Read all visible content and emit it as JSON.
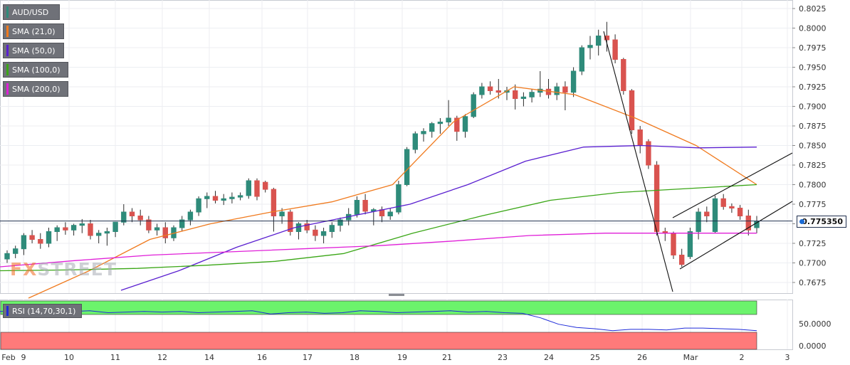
{
  "chart_data": [
    {
      "type": "candlestick",
      "title": "AUD/USD",
      "legend": [
        {
          "label": "AUD/USD",
          "color": "#2e8b7a"
        },
        {
          "label": "SMA (21,0)",
          "color": "#f07a1e"
        },
        {
          "label": "SMA (50,0)",
          "color": "#5a1fd0"
        },
        {
          "label": "SMA (100,0)",
          "color": "#3aa616"
        },
        {
          "label": "SMA (200,0)",
          "color": "#e01fd8"
        }
      ],
      "y_ticks": [
        "0.8025",
        "0.8000",
        "0.7975",
        "0.7950",
        "0.7925",
        "0.7900",
        "0.7875",
        "0.7850",
        "0.7825",
        "0.7800",
        "0.7775",
        "0.7750",
        "0.7725",
        "0.7700",
        "0.7675"
      ],
      "ylim": [
        0.7662,
        0.8035
      ],
      "x_ticks": [
        "Feb",
        "9",
        "10",
        "11",
        "12",
        "14",
        "16",
        "17",
        "18",
        "19",
        "21",
        "23",
        "24",
        "25",
        "26",
        "Mar",
        "2",
        "3"
      ],
      "current_price": "0.775350",
      "candles": [
        [
          0.7705,
          0.7716,
          0.77,
          0.7712
        ],
        [
          0.7712,
          0.7722,
          0.7706,
          0.7718
        ],
        [
          0.7718,
          0.7738,
          0.771,
          0.7735
        ],
        [
          0.7735,
          0.7742,
          0.7725,
          0.773
        ],
        [
          0.773,
          0.7738,
          0.7718,
          0.7725
        ],
        [
          0.7725,
          0.7745,
          0.772,
          0.774
        ],
        [
          0.774,
          0.7748,
          0.7728,
          0.7745
        ],
        [
          0.7745,
          0.7752,
          0.7736,
          0.7742
        ],
        [
          0.7742,
          0.775,
          0.7735,
          0.7748
        ],
        [
          0.7748,
          0.7756,
          0.7738,
          0.775
        ],
        [
          0.775,
          0.7755,
          0.773,
          0.7735
        ],
        [
          0.7735,
          0.7742,
          0.7725,
          0.7738
        ],
        [
          0.7738,
          0.7745,
          0.7722,
          0.774
        ],
        [
          0.774,
          0.775,
          0.7733,
          0.7752
        ],
        [
          0.7752,
          0.7775,
          0.7748,
          0.7765
        ],
        [
          0.7765,
          0.777,
          0.7752,
          0.776
        ],
        [
          0.776,
          0.7768,
          0.7748,
          0.7755
        ],
        [
          0.7755,
          0.776,
          0.7738,
          0.7742
        ],
        [
          0.7742,
          0.775,
          0.7735,
          0.7745
        ],
        [
          0.7745,
          0.7752,
          0.7725,
          0.7732
        ],
        [
          0.7732,
          0.7748,
          0.7728,
          0.7745
        ],
        [
          0.7745,
          0.776,
          0.774,
          0.7755
        ],
        [
          0.7755,
          0.7768,
          0.7748,
          0.7765
        ],
        [
          0.7765,
          0.7785,
          0.776,
          0.7782
        ],
        [
          0.7782,
          0.779,
          0.777,
          0.7785
        ],
        [
          0.7785,
          0.7792,
          0.7776,
          0.778
        ],
        [
          0.778,
          0.7788,
          0.7774,
          0.7782
        ],
        [
          0.7782,
          0.779,
          0.7776,
          0.7784
        ],
        [
          0.7784,
          0.779,
          0.778,
          0.7786
        ],
        [
          0.7786,
          0.7808,
          0.7782,
          0.7805
        ],
        [
          0.7805,
          0.7808,
          0.778,
          0.7785
        ],
        [
          0.7803,
          0.7805,
          0.779,
          0.7794
        ],
        [
          0.7794,
          0.7796,
          0.774,
          0.776
        ],
        [
          0.776,
          0.777,
          0.775,
          0.7765
        ],
        [
          0.7765,
          0.7768,
          0.7735,
          0.774
        ],
        [
          0.774,
          0.7752,
          0.773,
          0.775
        ],
        [
          0.775,
          0.7755,
          0.7738,
          0.7742
        ],
        [
          0.7742,
          0.7748,
          0.7728,
          0.7735
        ],
        [
          0.7735,
          0.7745,
          0.7725,
          0.774
        ],
        [
          0.774,
          0.7752,
          0.7732,
          0.7748
        ],
        [
          0.7748,
          0.7758,
          0.774,
          0.7755
        ],
        [
          0.7755,
          0.777,
          0.7748,
          0.7762
        ],
        [
          0.7762,
          0.7785,
          0.7758,
          0.778
        ],
        [
          0.778,
          0.7788,
          0.7762,
          0.7766
        ],
        [
          0.7766,
          0.777,
          0.7748,
          0.7768
        ],
        [
          0.7768,
          0.7772,
          0.7752,
          0.776
        ],
        [
          0.776,
          0.777,
          0.7755,
          0.7765
        ],
        [
          0.7765,
          0.7805,
          0.7762,
          0.78
        ],
        [
          0.78,
          0.7848,
          0.7798,
          0.7845
        ],
        [
          0.7845,
          0.7868,
          0.784,
          0.7865
        ],
        [
          0.7865,
          0.7872,
          0.7855,
          0.7868
        ],
        [
          0.7868,
          0.788,
          0.786,
          0.7878
        ],
        [
          0.7878,
          0.7885,
          0.7865,
          0.788
        ],
        [
          0.788,
          0.7908,
          0.7875,
          0.7885
        ],
        [
          0.7885,
          0.7888,
          0.7856,
          0.7868
        ],
        [
          0.7868,
          0.789,
          0.786,
          0.7887
        ],
        [
          0.7887,
          0.7918,
          0.7885,
          0.7915
        ],
        [
          0.7915,
          0.793,
          0.791,
          0.7925
        ],
        [
          0.7925,
          0.7932,
          0.7915,
          0.792
        ],
        [
          0.792,
          0.7935,
          0.791,
          0.7918
        ],
        [
          0.7918,
          0.7925,
          0.7908,
          0.792
        ],
        [
          0.792,
          0.7928,
          0.7896,
          0.791
        ],
        [
          0.791,
          0.7918,
          0.79,
          0.7912
        ],
        [
          0.7912,
          0.7922,
          0.7905,
          0.7918
        ],
        [
          0.7918,
          0.7945,
          0.7912,
          0.7922
        ],
        [
          0.7922,
          0.7935,
          0.791,
          0.7915
        ],
        [
          0.7915,
          0.793,
          0.7908,
          0.7925
        ],
        [
          0.7925,
          0.7932,
          0.7895,
          0.7918
        ],
        [
          0.7918,
          0.795,
          0.7912,
          0.7945
        ],
        [
          0.7945,
          0.7978,
          0.794,
          0.7975
        ],
        [
          0.7975,
          0.799,
          0.796,
          0.7978
        ],
        [
          0.7978,
          0.7998,
          0.7965,
          0.799
        ],
        [
          0.799,
          0.8008,
          0.797,
          0.7985
        ],
        [
          0.7985,
          0.7992,
          0.7955,
          0.796
        ],
        [
          0.796,
          0.7962,
          0.7915,
          0.792
        ],
        [
          0.792,
          0.7922,
          0.7865,
          0.787
        ],
        [
          0.787,
          0.7875,
          0.784,
          0.785
        ],
        [
          0.7855,
          0.7858,
          0.782,
          0.7825
        ],
        [
          0.7825,
          0.783,
          0.7735,
          0.774
        ],
        [
          0.774,
          0.7745,
          0.7728,
          0.7738
        ],
        [
          0.7738,
          0.774,
          0.7705,
          0.771
        ],
        [
          0.771,
          0.7718,
          0.7695,
          0.7698
        ],
        [
          0.7708,
          0.7745,
          0.7705,
          0.774
        ],
        [
          0.774,
          0.777,
          0.773,
          0.7765
        ],
        [
          0.7765,
          0.7772,
          0.7752,
          0.776
        ],
        [
          0.774,
          0.7786,
          0.7738,
          0.7782
        ],
        [
          0.7782,
          0.7788,
          0.7768,
          0.7772
        ],
        [
          0.7772,
          0.7776,
          0.7764,
          0.777
        ],
        [
          0.777,
          0.7774,
          0.7755,
          0.776
        ],
        [
          0.776,
          0.7768,
          0.7735,
          0.7742
        ],
        [
          0.7745,
          0.776,
          0.7738,
          0.7753
        ]
      ],
      "series": [
        {
          "name": "SMA (21,0)",
          "color": "#f07a1e",
          "values": [
            0.7655,
            0.769,
            0.773,
            0.775,
            0.7765,
            0.7778,
            0.78,
            0.788,
            0.7925,
            0.7915,
            0.7885,
            0.785,
            0.78
          ]
        },
        {
          "name": "SMA (50,0)",
          "color": "#5a1fd0",
          "values": [
            0.7665,
            0.769,
            0.772,
            0.7745,
            0.776,
            0.7775,
            0.78,
            0.783,
            0.7848,
            0.785,
            0.7847,
            0.7848
          ]
        },
        {
          "name": "SMA (100,0)",
          "color": "#3aa616",
          "values": [
            0.769,
            0.7691,
            0.7693,
            0.7697,
            0.7702,
            0.7712,
            0.7738,
            0.776,
            0.778,
            0.779,
            0.7795,
            0.78
          ]
        },
        {
          "name": "SMA (200,0)",
          "color": "#e01fd8",
          "values": [
            0.7695,
            0.7703,
            0.771,
            0.7714,
            0.7718,
            0.7722,
            0.7728,
            0.7735,
            0.7738,
            0.7738,
            0.7738
          ]
        }
      ]
    },
    {
      "type": "line",
      "title": "RSI (14,70,30,1)",
      "y_ticks": [
        "50.0000",
        "0.0000"
      ],
      "ylim": [
        0,
        100
      ],
      "series": [
        {
          "name": "RSI",
          "color": "#1e2bd9",
          "values": [
            72,
            73,
            71,
            70,
            72,
            73,
            70,
            71,
            72,
            71,
            72,
            70,
            71,
            72,
            73,
            68,
            70,
            71,
            69,
            70,
            73,
            72,
            70,
            71,
            72,
            73,
            71,
            72,
            70,
            69,
            62,
            52,
            47,
            45,
            42,
            44,
            44,
            43,
            46,
            46,
            45,
            44,
            42
          ]
        }
      ],
      "bands": {
        "overbought": 70,
        "oversold": 30
      }
    }
  ],
  "ui": {
    "rsi_label": "RSI (14,70,30,1)",
    "price_tag": "0.775350",
    "watermark_x": "FX",
    "watermark_rest": "STREET"
  }
}
